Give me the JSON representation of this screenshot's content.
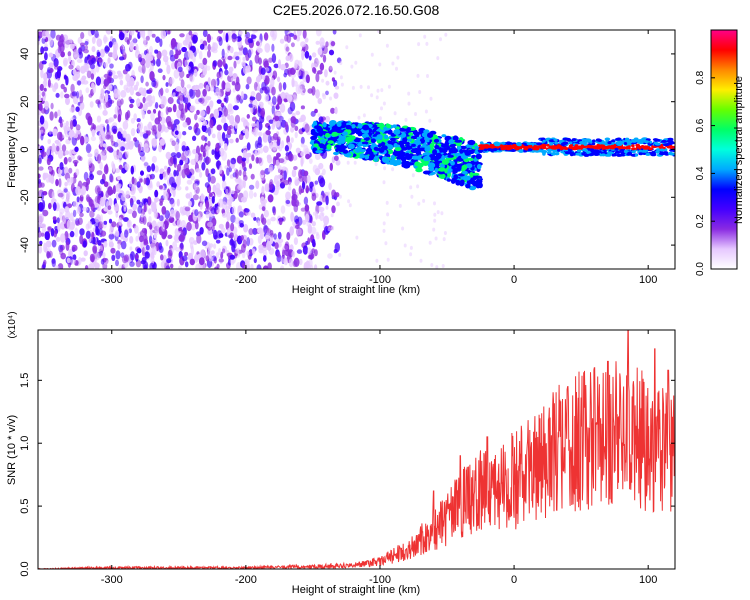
{
  "title": "C2E5.2026.072.16.50.G08",
  "colors": {
    "line": "#ee3333",
    "axis": "#000000",
    "background": "#ffffff",
    "colormap": [
      "#ffffff",
      "#e6c8ff",
      "#8a2be2",
      "#4400ff",
      "#0000ff",
      "#00aaff",
      "#00ffdd",
      "#00ff66",
      "#66ff00",
      "#ffee00",
      "#ff8800",
      "#ff0000",
      "#ff0088"
    ]
  },
  "chart_data": [
    {
      "type": "heatmap",
      "title": "C2E5.2026.072.16.50.G08",
      "xlabel": "Height of straight line (km)",
      "ylabel": "Frequency (Hz)",
      "xlim": [
        -355,
        120
      ],
      "ylim": [
        -50,
        50
      ],
      "xticks": [
        -300,
        -200,
        -100,
        0,
        100
      ],
      "xtick_labels": [
        "-300",
        "-200",
        "-100",
        "0",
        "100"
      ],
      "yticks": [
        -40,
        -20,
        0,
        20,
        40
      ],
      "ytick_labels": [
        "-40",
        "-20",
        "0",
        "20",
        "40"
      ],
      "colorbar": {
        "label": "Normalized spectral amplitude",
        "range": [
          0,
          1
        ],
        "ticks": [
          0.0,
          0.2,
          0.4,
          0.6,
          0.8
        ],
        "tick_labels": [
          "0.0",
          "0.2",
          "0.4",
          "0.6",
          "0.8"
        ]
      },
      "regions": [
        {
          "name": "noise",
          "x_range": [
            -355,
            -150
          ],
          "freq_range": [
            -50,
            50
          ],
          "amplitude": 0.12
        },
        {
          "name": "transition",
          "x_range": [
            -150,
            -25
          ],
          "center_freq_start": 5,
          "center_freq_end": -8,
          "amplitude": 0.3
        },
        {
          "name": "tone",
          "x_range": [
            -25,
            120
          ],
          "center_freq": 1,
          "amplitude": 0.95
        }
      ]
    },
    {
      "type": "line",
      "xlabel": "Height of straight line (km)",
      "ylabel": "SNR (10 * v/v)",
      "exponent_label": "(x10⁴)",
      "xlim": [
        -355,
        120
      ],
      "ylim": [
        0,
        1.9
      ],
      "xticks": [
        -300,
        -200,
        -100,
        0,
        100
      ],
      "xtick_labels": [
        "-300",
        "-200",
        "-100",
        "0",
        "100"
      ],
      "yticks": [
        0.0,
        0.5,
        1.0,
        1.5
      ],
      "ytick_labels": [
        "0.0",
        "0.5",
        "1.0",
        "1.5"
      ],
      "series": [
        {
          "name": "SNR",
          "x": [
            -355,
            -300,
            -250,
            -200,
            -150,
            -120,
            -100,
            -80,
            -60,
            -40,
            -20,
            0,
            20,
            40,
            60,
            80,
            100,
            120
          ],
          "values": [
            0.0,
            0.01,
            0.01,
            0.01,
            0.02,
            0.03,
            0.06,
            0.15,
            0.3,
            0.5,
            0.65,
            0.7,
            0.85,
            1.0,
            1.05,
            1.1,
            1.0,
            0.9
          ],
          "peaks": [
            {
              "x": -60,
              "value": 0.62
            },
            {
              "x": -40,
              "value": 0.9
            },
            {
              "x": -20,
              "value": 1.05
            },
            {
              "x": 40,
              "value": 1.45
            },
            {
              "x": 60,
              "value": 1.6
            },
            {
              "x": 70,
              "value": 1.65
            },
            {
              "x": 85,
              "value": 1.9
            },
            {
              "x": 105,
              "value": 1.75
            },
            {
              "x": 115,
              "value": 1.58
            }
          ]
        }
      ]
    }
  ]
}
